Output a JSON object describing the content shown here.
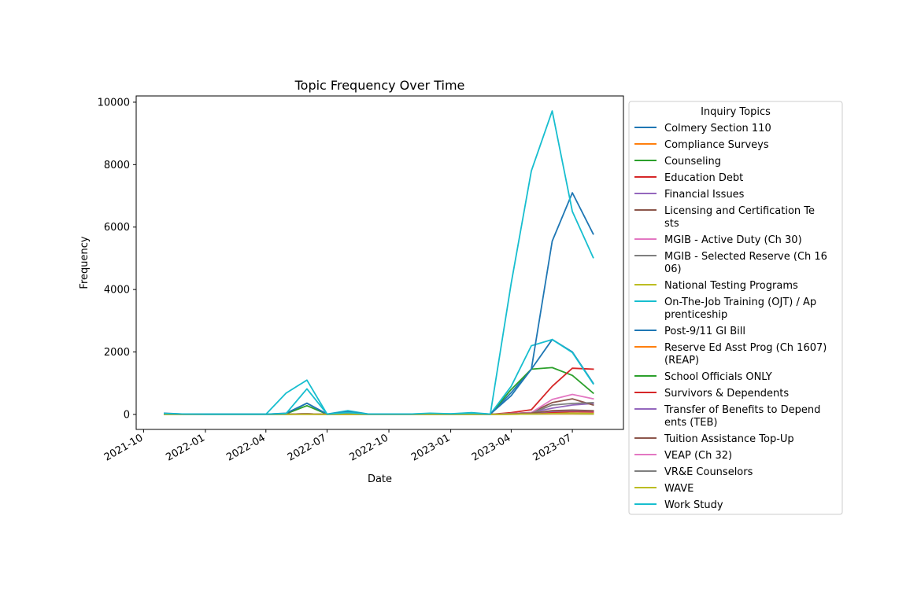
{
  "chart_data": {
    "type": "line",
    "title": "Topic Frequency Over Time",
    "xlabel": "Date",
    "ylabel": "Frequency",
    "x": [
      "2021-11-01",
      "2021-12-01",
      "2022-01-01",
      "2022-02-01",
      "2022-03-01",
      "2022-04-01",
      "2022-05-01",
      "2022-06-01",
      "2022-07-01",
      "2022-08-01",
      "2022-09-01",
      "2022-10-01",
      "2022-11-01",
      "2022-12-01",
      "2023-01-01",
      "2023-02-01",
      "2023-03-01",
      "2023-04-01",
      "2023-05-01",
      "2023-06-01",
      "2023-07-01",
      "2023-08-01"
    ],
    "xlim": [
      "2021-09-20",
      "2023-09-15"
    ],
    "ylim": [
      -480,
      10200
    ],
    "xticks": [
      "2021-10-01",
      "2022-01-01",
      "2022-04-01",
      "2022-07-01",
      "2022-10-01",
      "2023-01-01",
      "2023-04-01",
      "2023-07-01"
    ],
    "xtick_labels": [
      "2021-10",
      "2022-01",
      "2022-04",
      "2022-07",
      "2022-10",
      "2023-01",
      "2023-04",
      "2023-07"
    ],
    "yticks": [
      0,
      2000,
      4000,
      6000,
      8000,
      10000
    ],
    "ytick_labels": [
      "0",
      "2000",
      "4000",
      "6000",
      "8000",
      "10000"
    ],
    "grid": false,
    "legend_title": "Inquiry Topics",
    "legend_placement": "outside-right",
    "series": [
      {
        "name": "Colmery Section 110",
        "color": "#1f77b4",
        "label_lines": [
          "Colmery Section 110"
        ],
        "values": [
          20,
          5,
          5,
          5,
          5,
          5,
          30,
          360,
          10,
          40,
          5,
          5,
          5,
          10,
          5,
          30,
          5,
          700,
          1450,
          2400,
          2000,
          1000
        ]
      },
      {
        "name": "Compliance Surveys",
        "color": "#ff7f0e",
        "label_lines": [
          "Compliance Surveys"
        ],
        "values": [
          5,
          2,
          2,
          2,
          2,
          2,
          5,
          10,
          2,
          5,
          2,
          2,
          2,
          3,
          3,
          5,
          2,
          10,
          20,
          30,
          25,
          20
        ]
      },
      {
        "name": "Counseling",
        "color": "#2ca02c",
        "label_lines": [
          "Counseling"
        ],
        "values": [
          10,
          3,
          3,
          3,
          3,
          3,
          20,
          280,
          5,
          30,
          5,
          5,
          5,
          8,
          5,
          20,
          5,
          800,
          1450,
          1500,
          1250,
          680
        ]
      },
      {
        "name": "Education Debt",
        "color": "#d62728",
        "label_lines": [
          "Education Debt"
        ],
        "values": [
          5,
          2,
          2,
          2,
          2,
          2,
          5,
          20,
          2,
          10,
          2,
          2,
          2,
          3,
          3,
          5,
          2,
          60,
          150,
          900,
          1480,
          1450
        ]
      },
      {
        "name": "Financial Issues",
        "color": "#9467bd",
        "label_lines": [
          "Financial Issues"
        ],
        "values": [
          5,
          2,
          2,
          2,
          2,
          2,
          5,
          20,
          2,
          10,
          2,
          2,
          2,
          3,
          3,
          5,
          2,
          30,
          60,
          200,
          300,
          350
        ]
      },
      {
        "name": "Licensing and Certification Tests",
        "color": "#8c564b",
        "label_lines": [
          "Licensing and Certification Te",
          "sts"
        ],
        "values": [
          5,
          2,
          2,
          2,
          2,
          2,
          5,
          20,
          2,
          10,
          2,
          2,
          2,
          3,
          3,
          5,
          2,
          30,
          60,
          380,
          500,
          300
        ]
      },
      {
        "name": "MGIB - Active Duty (Ch 30)",
        "color": "#e377c2",
        "label_lines": [
          "MGIB - Active Duty (Ch 30)"
        ],
        "values": [
          5,
          2,
          2,
          2,
          2,
          2,
          5,
          20,
          2,
          10,
          2,
          2,
          2,
          3,
          3,
          5,
          2,
          30,
          60,
          480,
          640,
          500
        ]
      },
      {
        "name": "MGIB - Selected Reserve (Ch 1606)",
        "color": "#7f7f7f",
        "label_lines": [
          "MGIB - Selected Reserve (Ch 16",
          "06)"
        ],
        "values": [
          5,
          2,
          2,
          2,
          2,
          2,
          5,
          20,
          2,
          10,
          2,
          2,
          2,
          3,
          3,
          5,
          2,
          20,
          40,
          300,
          350,
          380
        ]
      },
      {
        "name": "National Testing Programs",
        "color": "#bcbd22",
        "label_lines": [
          "National Testing Programs"
        ],
        "values": [
          5,
          2,
          2,
          2,
          2,
          2,
          5,
          15,
          2,
          8,
          2,
          2,
          2,
          3,
          3,
          5,
          2,
          15,
          30,
          40,
          40,
          30
        ]
      },
      {
        "name": "On-The-Job Training (OJT) / Apprenticeship",
        "color": "#17becf",
        "label_lines": [
          "On-The-Job Training (OJT) / Ap",
          "prenticeship"
        ],
        "values": [
          30,
          5,
          5,
          5,
          5,
          5,
          680,
          1100,
          10,
          120,
          10,
          10,
          10,
          30,
          20,
          60,
          10,
          900,
          2200,
          2400,
          1980,
          980
        ]
      },
      {
        "name": "Post-9/11 GI Bill",
        "color": "#1f77b4",
        "label_lines": [
          "Post-9/11 GI Bill"
        ],
        "values": [
          40,
          10,
          5,
          5,
          5,
          5,
          40,
          360,
          10,
          80,
          10,
          10,
          10,
          20,
          10,
          40,
          10,
          600,
          1450,
          5550,
          7100,
          5780
        ]
      },
      {
        "name": "Reserve Ed Asst Prog (Ch 1607) (REAP)",
        "color": "#ff7f0e",
        "label_lines": [
          "Reserve Ed Asst Prog (Ch 1607)",
          " (REAP)"
        ],
        "values": [
          2,
          1,
          1,
          1,
          1,
          1,
          2,
          5,
          1,
          3,
          1,
          1,
          1,
          1,
          1,
          2,
          1,
          5,
          10,
          15,
          15,
          10
        ]
      },
      {
        "name": "School Officials ONLY",
        "color": "#2ca02c",
        "label_lines": [
          "School Officials ONLY"
        ],
        "values": [
          5,
          2,
          2,
          2,
          2,
          2,
          5,
          15,
          2,
          8,
          2,
          2,
          2,
          3,
          3,
          5,
          2,
          20,
          40,
          80,
          100,
          90
        ]
      },
      {
        "name": "Survivors & Dependents",
        "color": "#d62728",
        "label_lines": [
          "Survivors & Dependents"
        ],
        "values": [
          5,
          2,
          2,
          2,
          2,
          2,
          5,
          15,
          2,
          8,
          2,
          2,
          2,
          3,
          3,
          5,
          2,
          20,
          40,
          70,
          90,
          80
        ]
      },
      {
        "name": "Transfer of Benefits to Dependents (TEB)",
        "color": "#9467bd",
        "label_lines": [
          "Transfer of Benefits to Depend",
          "ents (TEB)"
        ],
        "values": [
          5,
          2,
          2,
          2,
          2,
          2,
          5,
          15,
          2,
          8,
          2,
          2,
          2,
          3,
          3,
          5,
          2,
          20,
          40,
          100,
          120,
          110
        ]
      },
      {
        "name": "Tuition Assistance Top-Up",
        "color": "#8c564b",
        "label_lines": [
          "Tuition Assistance Top-Up"
        ],
        "values": [
          5,
          2,
          2,
          2,
          2,
          2,
          5,
          15,
          2,
          8,
          2,
          2,
          2,
          3,
          3,
          5,
          2,
          20,
          40,
          120,
          140,
          120
        ]
      },
      {
        "name": "VEAP (Ch 32)",
        "color": "#e377c2",
        "label_lines": [
          "VEAP (Ch 32)"
        ],
        "values": [
          2,
          1,
          1,
          1,
          1,
          1,
          2,
          5,
          1,
          3,
          1,
          1,
          1,
          1,
          1,
          2,
          1,
          5,
          10,
          15,
          15,
          10
        ]
      },
      {
        "name": "VR&E Counselors",
        "color": "#7f7f7f",
        "label_lines": [
          "VR&E Counselors"
        ],
        "values": [
          2,
          1,
          1,
          1,
          1,
          1,
          2,
          5,
          1,
          3,
          1,
          1,
          1,
          1,
          1,
          2,
          1,
          5,
          10,
          20,
          20,
          15
        ]
      },
      {
        "name": "WAVE",
        "color": "#bcbd22",
        "label_lines": [
          "WAVE"
        ],
        "values": [
          2,
          1,
          1,
          1,
          1,
          1,
          2,
          5,
          1,
          3,
          1,
          1,
          1,
          1,
          1,
          2,
          1,
          5,
          10,
          20,
          20,
          15
        ]
      },
      {
        "name": "Work Study",
        "color": "#17becf",
        "label_lines": [
          "Work Study"
        ],
        "values": [
          30,
          10,
          5,
          5,
          5,
          5,
          30,
          820,
          10,
          60,
          10,
          10,
          10,
          40,
          20,
          40,
          10,
          4200,
          7800,
          9720,
          6500,
          5020
        ]
      }
    ]
  }
}
